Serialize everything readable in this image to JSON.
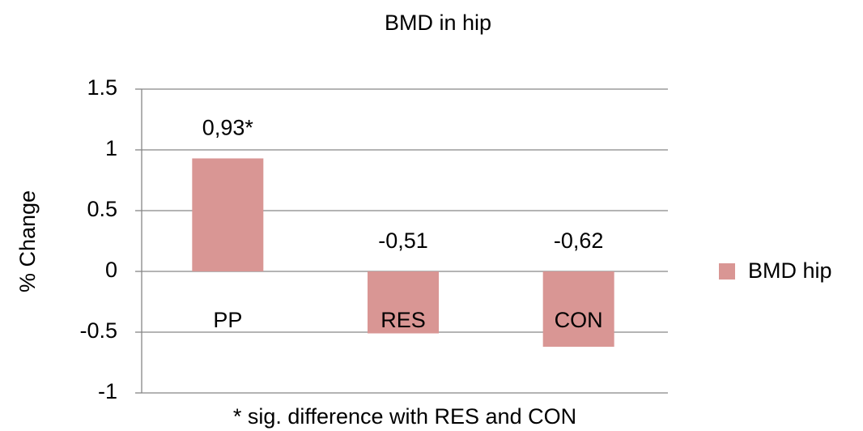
{
  "chart_data": {
    "type": "bar",
    "title": "BMD in hip",
    "y_label": "% Change",
    "annotation": "* sig. difference with RES and CON",
    "categories": [
      "PP",
      "RES",
      "CON"
    ],
    "series": [
      {
        "name": "BMD hip",
        "color": "#d99694",
        "values": [
          0.93,
          -0.51,
          -0.62
        ],
        "value_labels": [
          "0,93*",
          "-0,51",
          "-0,62"
        ]
      }
    ],
    "ylim": [
      -1,
      1.5
    ],
    "yticks": [
      1.5,
      1,
      0.5,
      0,
      -0.5,
      -1
    ],
    "grid": true,
    "legend": "right"
  }
}
